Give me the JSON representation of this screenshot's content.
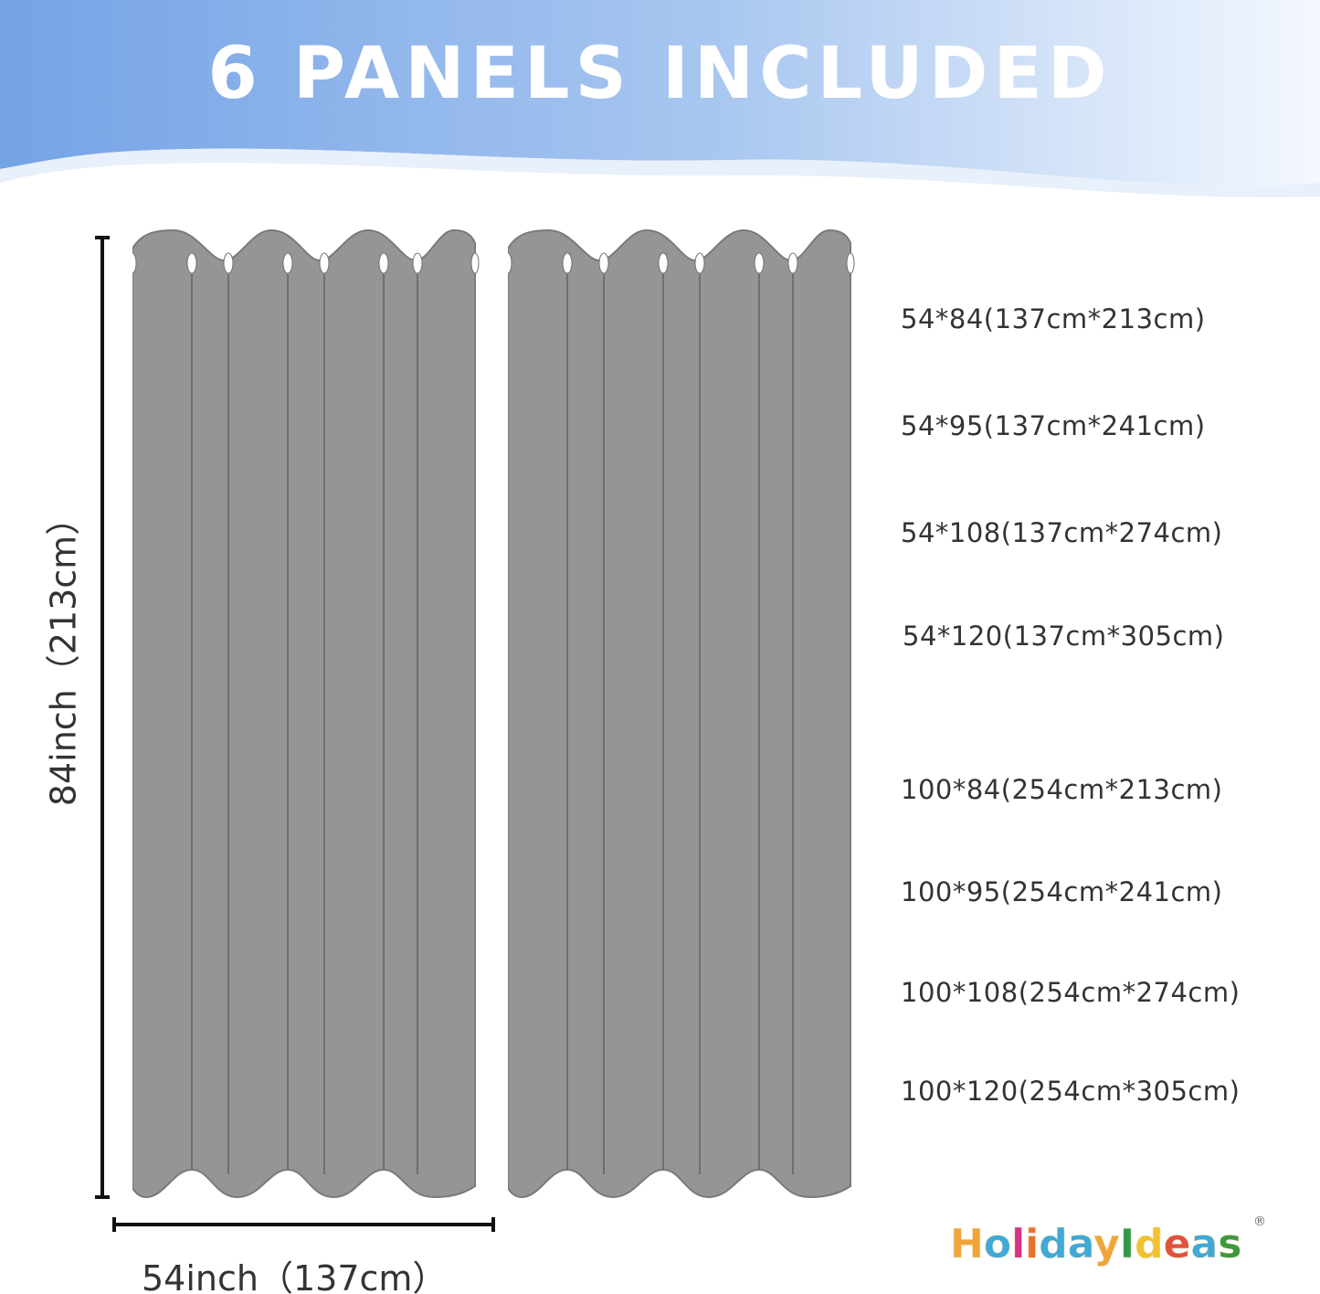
{
  "title": "6 PANELS INCLUDED",
  "colors": {
    "banner_left": "#74a3e6",
    "banner_right": "#ffffff",
    "curtain": "#959595",
    "curtain_edge": "#7a7a7a"
  },
  "dimensions": {
    "height_label": "84inch（213cm）",
    "width_label": "54inch（137cm）"
  },
  "sizes": [
    "54*84(137cm*213cm)",
    "54*95(137cm*241cm)",
    "54*108(137cm*274cm)",
    "54*120(137cm*305cm)",
    "100*84(254cm*213cm)",
    "100*95(254cm*241cm)",
    "100*108(254cm*274cm)",
    "100*120(254cm*305cm)"
  ],
  "logo": {
    "text": "HolidayIdeas",
    "registered": "®"
  }
}
